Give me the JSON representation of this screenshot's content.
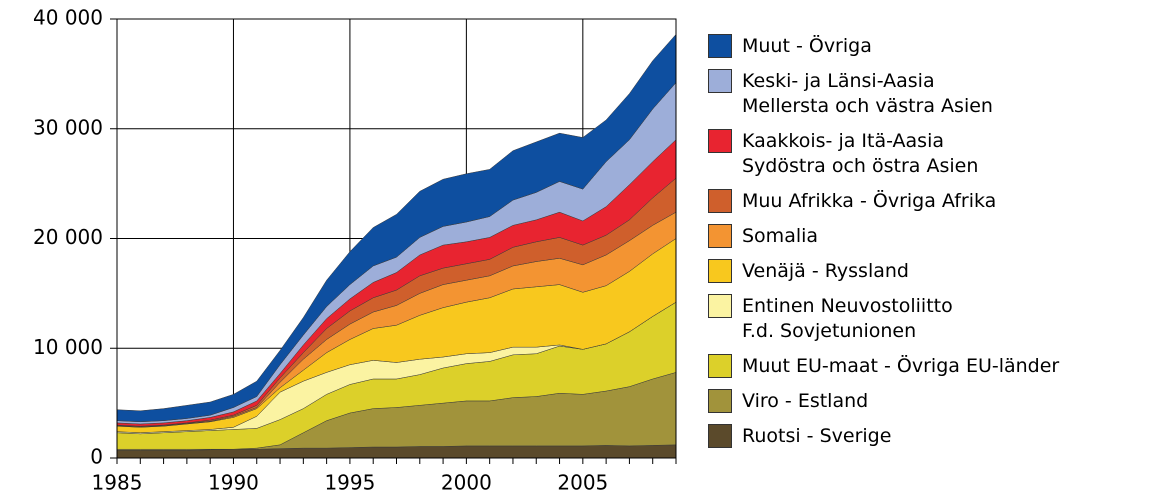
{
  "chart_data": {
    "type": "stacked_area",
    "x": [
      1985,
      1986,
      1987,
      1988,
      1989,
      1990,
      1991,
      1992,
      1993,
      1994,
      1995,
      1996,
      1997,
      1998,
      1999,
      2000,
      2001,
      2002,
      2003,
      2004,
      2005,
      2006,
      2007,
      2008,
      2009
    ],
    "xlim": [
      1985,
      2009
    ],
    "xticks": [
      1985,
      1990,
      1995,
      2000,
      2005
    ],
    "ylim": [
      0,
      40000
    ],
    "yticks": [
      0,
      {
        "value": 10000,
        "label": "10 000"
      },
      {
        "value": 20000,
        "label": "20 000"
      },
      {
        "value": 30000,
        "label": "30 000"
      },
      {
        "value": 40000,
        "label": "40 000"
      }
    ],
    "grid": true,
    "series": [
      {
        "name": "Ruotsi - Sverige",
        "color": "#5b4a2b",
        "values": [
          700,
          700,
          700,
          700,
          750,
          800,
          800,
          850,
          900,
          900,
          950,
          1000,
          1000,
          1050,
          1050,
          1100,
          1100,
          1100,
          1100,
          1100,
          1100,
          1150,
          1100,
          1150,
          1200
        ]
      },
      {
        "name": "Viro - Estland",
        "color": "#a1933b",
        "values": [
          100,
          100,
          100,
          100,
          50,
          0,
          100,
          350,
          1400,
          2500,
          3150,
          3500,
          3600,
          3750,
          3950,
          4100,
          4100,
          4400,
          4500,
          4800,
          4700,
          4950,
          5400,
          6050,
          6600
        ]
      },
      {
        "name": "Muut EU-maat - Övriga EU-länder",
        "color": "#dcd02a",
        "values": [
          1500,
          1400,
          1500,
          1600,
          1700,
          1800,
          1800,
          2300,
          2200,
          2400,
          2600,
          2700,
          2600,
          2800,
          3200,
          3400,
          3600,
          3900,
          3900,
          4300,
          4100,
          4300,
          5000,
          5700,
          6400
        ]
      },
      {
        "name": "Entinen Neuvostoliitto\nF.d. Sovjetunionen",
        "color": "#fbf3a2",
        "values": [
          100,
          100,
          100,
          100,
          100,
          200,
          1100,
          2500,
          2500,
          2000,
          1800,
          1700,
          1500,
          1400,
          1000,
          900,
          800,
          700,
          600,
          100,
          0,
          0,
          0,
          0,
          0
        ]
      },
      {
        "name": "Venäjä - Ryssland",
        "color": "#f8c81e",
        "values": [
          500,
          500,
          500,
          600,
          700,
          900,
          700,
          400,
          1000,
          1800,
          2300,
          2900,
          3400,
          4000,
          4500,
          4700,
          5000,
          5300,
          5500,
          5500,
          5200,
          5300,
          5500,
          5700,
          5800
        ]
      },
      {
        "name": "Somalia",
        "color": "#f39432",
        "values": [
          50,
          50,
          50,
          50,
          50,
          100,
          100,
          500,
          1000,
          1200,
          1400,
          1500,
          1800,
          2000,
          2100,
          2000,
          2000,
          2100,
          2300,
          2400,
          2500,
          2800,
          2800,
          2600,
          2400
        ]
      },
      {
        "name": "Muu Afrikka - Övriga Afrika",
        "color": "#cf5f2c",
        "values": [
          50,
          50,
          50,
          50,
          100,
          100,
          200,
          400,
          600,
          1000,
          1200,
          1300,
          1400,
          1600,
          1500,
          1500,
          1500,
          1700,
          1800,
          1900,
          1800,
          1800,
          1900,
          2500,
          3100
        ]
      },
      {
        "name": "Kaakkois- ja Itä-Aasia\nSydöstra och östra Asien",
        "color": "#e82430",
        "values": [
          200,
          200,
          200,
          200,
          250,
          300,
          400,
          400,
          700,
          900,
          1100,
          1400,
          1600,
          1900,
          2100,
          2000,
          2000,
          2000,
          2000,
          2300,
          2200,
          2600,
          3200,
          3300,
          3500
        ]
      },
      {
        "name": "Keski- ja Länsi-Aasia\nMellersta och västra Asien",
        "color": "#9daed9",
        "values": [
          200,
          200,
          200,
          200,
          200,
          400,
          400,
          800,
          900,
          1100,
          1300,
          1500,
          1400,
          1600,
          1700,
          1800,
          1900,
          2300,
          2500,
          2800,
          2900,
          4100,
          4100,
          4800,
          5200
        ]
      },
      {
        "name": "Muut - Övriga",
        "color": "#0e4fa0",
        "values": [
          1000,
          1000,
          1100,
          1200,
          1200,
          1200,
          1400,
          1300,
          1600,
          2400,
          3000,
          3500,
          3900,
          4200,
          4300,
          4400,
          4300,
          4500,
          4600,
          4400,
          4700,
          3800,
          4200,
          4400,
          4400
        ]
      }
    ]
  }
}
